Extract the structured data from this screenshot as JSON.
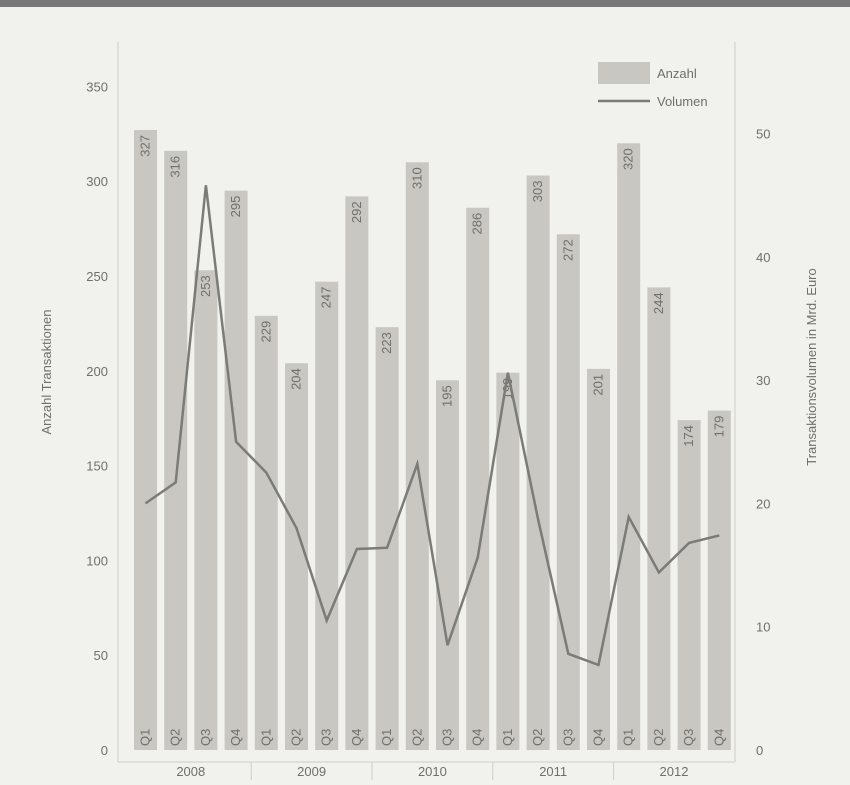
{
  "colors": {
    "background": "#f1f1ed",
    "topbar": "#777877",
    "bar": "#c8c7c1",
    "line": "#7b7b77",
    "axis": "#cfcec9",
    "text": "#6f6f6b"
  },
  "chart_data": {
    "type": "bar",
    "categories": [
      "Q1",
      "Q2",
      "Q3",
      "Q4",
      "Q1",
      "Q2",
      "Q3",
      "Q4",
      "Q1",
      "Q2",
      "Q3",
      "Q4",
      "Q1",
      "Q2",
      "Q3",
      "Q4",
      "Q1",
      "Q2",
      "Q3",
      "Q4"
    ],
    "year_groups": [
      {
        "label": "2008",
        "start": 0,
        "end": 3
      },
      {
        "label": "2009",
        "start": 4,
        "end": 7
      },
      {
        "label": "2010",
        "start": 8,
        "end": 11
      },
      {
        "label": "2011",
        "start": 12,
        "end": 15
      },
      {
        "label": "2012",
        "start": 16,
        "end": 19
      }
    ],
    "series": [
      {
        "name": "Anzahl",
        "type": "bar",
        "axis": "left",
        "values": [
          327,
          316,
          253,
          295,
          229,
          204,
          247,
          292,
          223,
          310,
          195,
          286,
          199,
          303,
          272,
          201,
          320,
          244,
          174,
          179
        ]
      },
      {
        "name": "Volumen",
        "type": "line",
        "axis": "right",
        "values": [
          20.0,
          21.7,
          45.8,
          25.0,
          22.5,
          18.0,
          10.5,
          16.3,
          16.4,
          23.2,
          8.5,
          15.6,
          30.6,
          18.7,
          7.8,
          6.9,
          18.9,
          14.4,
          16.8,
          17.4
        ]
      }
    ],
    "ylabel_left": "Anzahl Transaktionen",
    "ylabel_right": "Transaktionsvolumen in Mrd. Euro",
    "ylim_left": [
      0,
      375
    ],
    "yticks_left": [
      "0",
      "50",
      "100",
      "150",
      "200",
      "250",
      "300",
      "350"
    ],
    "ylim_right": [
      0,
      57.7
    ],
    "yticks_right": [
      "0",
      "10",
      "20",
      "30",
      "40",
      "50"
    ],
    "grid": false,
    "legend_position": "top-right",
    "legend": [
      "Anzahl",
      "Volumen"
    ]
  }
}
